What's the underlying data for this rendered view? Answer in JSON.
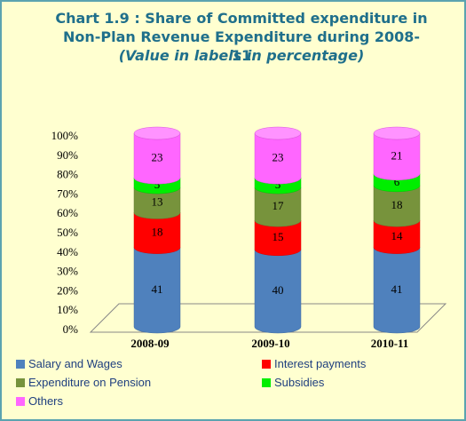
{
  "chart_data": {
    "type": "bar",
    "stacked": true,
    "title": "Chart 1.9 : Share of Committed expenditure in Non-Plan Revenue Expenditure during 2008-11",
    "subtitle": "(Value in labels in percentage)",
    "categories": [
      "2008-09",
      "2009-10",
      "2010-11"
    ],
    "series": [
      {
        "name": "Salary and Wages",
        "color": "#4f81bd",
        "values": [
          41,
          40,
          41
        ]
      },
      {
        "name": "Interest payments",
        "color": "#ff0000",
        "values": [
          18,
          15,
          14
        ]
      },
      {
        "name": "Expenditure on Pension",
        "color": "#77933c",
        "values": [
          13,
          17,
          18
        ]
      },
      {
        "name": "Subsidies",
        "color": "#00ee00",
        "values": [
          5,
          5,
          6
        ]
      },
      {
        "name": "Others",
        "color": "#ff66ff",
        "values": [
          23,
          23,
          21
        ]
      }
    ],
    "ylim": [
      0,
      100
    ],
    "yticks": [
      {
        "value": 0,
        "label": "0%"
      },
      {
        "value": 10,
        "label": "10%"
      },
      {
        "value": 20,
        "label": "20%"
      },
      {
        "value": 30,
        "label": "30%"
      },
      {
        "value": 40,
        "label": "40%"
      },
      {
        "value": 50,
        "label": "50%"
      },
      {
        "value": 60,
        "label": "60%"
      },
      {
        "value": 70,
        "label": "70%"
      },
      {
        "value": 80,
        "label": "80%"
      },
      {
        "value": 90,
        "label": "90%"
      },
      {
        "value": 100,
        "label": "100%"
      }
    ],
    "legend": "bottom"
  }
}
